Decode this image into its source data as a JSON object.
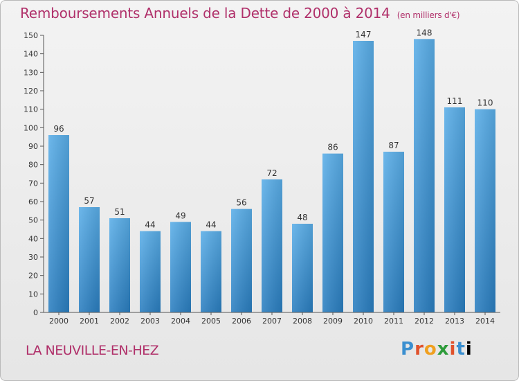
{
  "title": "Remboursements Annuels de la Dette de 2000 à 2014",
  "unit_note": "(en milliers d'€)",
  "location": "LA NEUVILLE-EN-HEZ",
  "logo_text": "Proxiti",
  "colors": {
    "title": "#b0306a",
    "bar_top": "#5aaee8",
    "bar_bottom": "#2a7ec0"
  },
  "chart_data": {
    "type": "bar",
    "categories": [
      "2000",
      "2001",
      "2002",
      "2003",
      "2004",
      "2005",
      "2006",
      "2007",
      "2008",
      "2009",
      "2010",
      "2011",
      "2012",
      "2013",
      "2014"
    ],
    "values": [
      96,
      57,
      51,
      44,
      49,
      44,
      56,
      72,
      48,
      86,
      147,
      87,
      148,
      111,
      110
    ],
    "yticks": [
      0,
      10,
      20,
      30,
      40,
      50,
      60,
      70,
      80,
      90,
      100,
      110,
      120,
      130,
      140,
      150
    ],
    "ylim": [
      0,
      150
    ],
    "xlabel": "",
    "ylabel": "",
    "grid": false,
    "legend": "none"
  }
}
